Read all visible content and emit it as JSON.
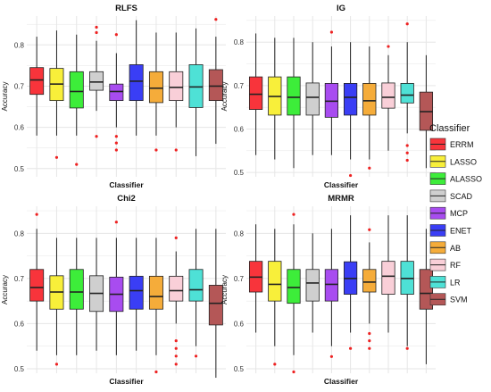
{
  "chart_data": [
    {
      "type": "box",
      "title": "RLFS",
      "xlabel": "Classifier",
      "ylabel": "Accuracy",
      "ylim": [
        0.48,
        0.87
      ],
      "yticks": [
        0.5,
        0.6,
        0.7,
        0.8
      ],
      "grid": true,
      "boxes": [
        {
          "name": "ERRM",
          "min": 0.58,
          "q1": 0.68,
          "median": 0.715,
          "q3": 0.745,
          "max": 0.82,
          "outliers": []
        },
        {
          "name": "LASSO",
          "min": 0.58,
          "q1": 0.665,
          "median": 0.705,
          "q3": 0.743,
          "max": 0.835,
          "outliers": [
            0.527
          ]
        },
        {
          "name": "ALASSO",
          "min": 0.58,
          "q1": 0.647,
          "median": 0.687,
          "q3": 0.735,
          "max": 0.825,
          "outliers": [
            0.51
          ]
        },
        {
          "name": "SCAD",
          "min": 0.64,
          "q1": 0.69,
          "median": 0.71,
          "q3": 0.735,
          "max": 0.81,
          "outliers": [
            0.843,
            0.83,
            0.578
          ]
        },
        {
          "name": "MCP",
          "min": 0.6,
          "q1": 0.665,
          "median": 0.687,
          "q3": 0.705,
          "max": 0.78,
          "outliers": [
            0.825,
            0.578,
            0.562,
            0.545
          ]
        },
        {
          "name": "ENET",
          "min": 0.58,
          "q1": 0.665,
          "median": 0.712,
          "q3": 0.752,
          "max": 0.86,
          "outliers": []
        },
        {
          "name": "AB",
          "min": 0.58,
          "q1": 0.66,
          "median": 0.695,
          "q3": 0.735,
          "max": 0.83,
          "outliers": [
            0.545
          ]
        },
        {
          "name": "RF",
          "min": 0.6,
          "q1": 0.665,
          "median": 0.697,
          "q3": 0.735,
          "max": 0.83,
          "outliers": [
            0.545
          ]
        },
        {
          "name": "LR",
          "min": 0.53,
          "q1": 0.648,
          "median": 0.698,
          "q3": 0.752,
          "max": 0.84,
          "outliers": []
        },
        {
          "name": "SVM",
          "min": 0.56,
          "q1": 0.665,
          "median": 0.7,
          "q3": 0.74,
          "max": 0.82,
          "outliers": [
            0.862
          ]
        }
      ]
    },
    {
      "type": "box",
      "title": "IG",
      "xlabel": "Classifier",
      "ylabel": "Accuracy",
      "ylim": [
        0.49,
        0.86
      ],
      "yticks": [
        0.5,
        0.6,
        0.7,
        0.8
      ],
      "grid": true,
      "boxes": [
        {
          "name": "ERRM",
          "min": 0.54,
          "q1": 0.645,
          "median": 0.68,
          "q3": 0.72,
          "max": 0.82,
          "outliers": []
        },
        {
          "name": "LASSO",
          "min": 0.53,
          "q1": 0.632,
          "median": 0.675,
          "q3": 0.72,
          "max": 0.81,
          "outliers": []
        },
        {
          "name": "ALASSO",
          "min": 0.51,
          "q1": 0.632,
          "median": 0.673,
          "q3": 0.72,
          "max": 0.81,
          "outliers": []
        },
        {
          "name": "SCAD",
          "min": 0.54,
          "q1": 0.632,
          "median": 0.673,
          "q3": 0.706,
          "max": 0.8,
          "outliers": []
        },
        {
          "name": "MCP",
          "min": 0.54,
          "q1": 0.627,
          "median": 0.664,
          "q3": 0.705,
          "max": 0.79,
          "outliers": [
            0.823
          ]
        },
        {
          "name": "ENET",
          "min": 0.53,
          "q1": 0.632,
          "median": 0.673,
          "q3": 0.705,
          "max": 0.8,
          "outliers": [
            0.493
          ]
        },
        {
          "name": "AB",
          "min": 0.53,
          "q1": 0.632,
          "median": 0.665,
          "q3": 0.705,
          "max": 0.79,
          "outliers": [
            0.51
          ]
        },
        {
          "name": "RF",
          "min": 0.55,
          "q1": 0.648,
          "median": 0.673,
          "q3": 0.706,
          "max": 0.77,
          "outliers": [
            0.79
          ]
        },
        {
          "name": "LR",
          "min": 0.59,
          "q1": 0.66,
          "median": 0.678,
          "q3": 0.705,
          "max": 0.8,
          "outliers": [
            0.842,
            0.562,
            0.545,
            0.528
          ]
        },
        {
          "name": "SVM",
          "min": 0.51,
          "q1": 0.597,
          "median": 0.64,
          "q3": 0.685,
          "max": 0.77,
          "outliers": []
        }
      ]
    },
    {
      "type": "box",
      "title": "Chi2",
      "xlabel": "Classifier",
      "ylabel": "Accuracy",
      "ylim": [
        0.49,
        0.86
      ],
      "yticks": [
        0.5,
        0.6,
        0.7,
        0.8
      ],
      "grid": true,
      "boxes": [
        {
          "name": "ERRM",
          "min": 0.54,
          "q1": 0.65,
          "median": 0.68,
          "q3": 0.72,
          "max": 0.81,
          "outliers": [
            0.842
          ]
        },
        {
          "name": "LASSO",
          "min": 0.53,
          "q1": 0.632,
          "median": 0.67,
          "q3": 0.706,
          "max": 0.79,
          "outliers": [
            0.51
          ]
        },
        {
          "name": "ALASSO",
          "min": 0.53,
          "q1": 0.632,
          "median": 0.67,
          "q3": 0.72,
          "max": 0.79,
          "outliers": []
        },
        {
          "name": "SCAD",
          "min": 0.54,
          "q1": 0.627,
          "median": 0.667,
          "q3": 0.706,
          "max": 0.79,
          "outliers": []
        },
        {
          "name": "MCP",
          "min": 0.53,
          "q1": 0.627,
          "median": 0.665,
          "q3": 0.703,
          "max": 0.79,
          "outliers": [
            0.825
          ]
        },
        {
          "name": "ENET",
          "min": 0.54,
          "q1": 0.632,
          "median": 0.673,
          "q3": 0.705,
          "max": 0.79,
          "outliers": []
        },
        {
          "name": "AB",
          "min": 0.53,
          "q1": 0.632,
          "median": 0.66,
          "q3": 0.705,
          "max": 0.79,
          "outliers": [
            0.493
          ]
        },
        {
          "name": "RF",
          "min": 0.6,
          "q1": 0.65,
          "median": 0.673,
          "q3": 0.705,
          "max": 0.76,
          "outliers": [
            0.79,
            0.562,
            0.545,
            0.528,
            0.51
          ]
        },
        {
          "name": "LR",
          "min": 0.55,
          "q1": 0.65,
          "median": 0.675,
          "q3": 0.72,
          "max": 0.81,
          "outliers": [
            0.528
          ]
        },
        {
          "name": "SVM",
          "min": 0.48,
          "q1": 0.597,
          "median": 0.645,
          "q3": 0.685,
          "max": 0.81,
          "outliers": []
        }
      ]
    },
    {
      "type": "box",
      "title": "MRMR",
      "xlabel": "Classifier",
      "ylabel": "Accuracy",
      "ylim": [
        0.49,
        0.86
      ],
      "yticks": [
        0.5,
        0.6,
        0.7,
        0.8
      ],
      "grid": true,
      "boxes": [
        {
          "name": "ERRM",
          "min": 0.58,
          "q1": 0.67,
          "median": 0.703,
          "q3": 0.738,
          "max": 0.82,
          "outliers": []
        },
        {
          "name": "LASSO",
          "min": 0.55,
          "q1": 0.65,
          "median": 0.687,
          "q3": 0.738,
          "max": 0.81,
          "outliers": [
            0.51
          ]
        },
        {
          "name": "ALASSO",
          "min": 0.53,
          "q1": 0.645,
          "median": 0.68,
          "q3": 0.72,
          "max": 0.82,
          "outliers": [
            0.842,
            0.493
          ]
        },
        {
          "name": "SCAD",
          "min": 0.58,
          "q1": 0.65,
          "median": 0.69,
          "q3": 0.72,
          "max": 0.8,
          "outliers": []
        },
        {
          "name": "MCP",
          "min": 0.55,
          "q1": 0.65,
          "median": 0.687,
          "q3": 0.72,
          "max": 0.81,
          "outliers": [
            0.527
          ]
        },
        {
          "name": "ENET",
          "min": 0.58,
          "q1": 0.665,
          "median": 0.7,
          "q3": 0.737,
          "max": 0.84,
          "outliers": [
            0.545
          ]
        },
        {
          "name": "AB",
          "min": 0.6,
          "q1": 0.67,
          "median": 0.692,
          "q3": 0.72,
          "max": 0.78,
          "outliers": [
            0.808,
            0.578,
            0.562,
            0.545
          ]
        },
        {
          "name": "RF",
          "min": 0.58,
          "q1": 0.665,
          "median": 0.705,
          "q3": 0.738,
          "max": 0.84,
          "outliers": []
        },
        {
          "name": "LR",
          "min": 0.55,
          "q1": 0.665,
          "median": 0.7,
          "q3": 0.738,
          "max": 0.84,
          "outliers": [
            0.545
          ]
        },
        {
          "name": "SVM",
          "min": 0.51,
          "q1": 0.632,
          "median": 0.667,
          "q3": 0.72,
          "max": 0.81,
          "outliers": []
        }
      ]
    }
  ],
  "legend": {
    "title": "Classifier",
    "placement": "right",
    "entries": [
      {
        "name": "ERRM",
        "color": "#f8343b"
      },
      {
        "name": "LASSO",
        "color": "#f8ef3a"
      },
      {
        "name": "ALASSO",
        "color": "#3ded3a"
      },
      {
        "name": "SCAD",
        "color": "#cfcfcf"
      },
      {
        "name": "MCP",
        "color": "#a84cf0"
      },
      {
        "name": "ENET",
        "color": "#3a3ef5"
      },
      {
        "name": "AB",
        "color": "#f5ac3a"
      },
      {
        "name": "RF",
        "color": "#f9cfd8"
      },
      {
        "name": "LR",
        "color": "#4ee1d6"
      },
      {
        "name": "SVM",
        "color": "#b45757"
      }
    ]
  },
  "colors": {
    "panel_bg": "#ffffff",
    "grid": "#e6e6e6",
    "outlier": "#ee2222",
    "box_line": "#222222"
  }
}
